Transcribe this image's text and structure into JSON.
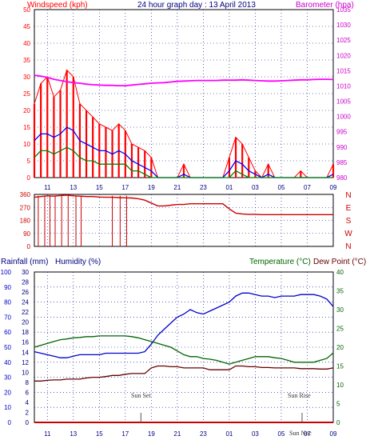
{
  "header": {
    "left_title": "Windspeed (kph)",
    "center_title": "24 hour graph day : 13 April 2013",
    "right_title": "Barometer (hpa)"
  },
  "axes": {
    "time_ticks": [
      "11",
      "13",
      "15",
      "17",
      "19",
      "21",
      "23",
      "01",
      "03",
      "05",
      "07",
      "09"
    ],
    "wind_ticks": [
      "0",
      "5",
      "10",
      "15",
      "20",
      "25",
      "30",
      "35",
      "40",
      "45",
      "50"
    ],
    "baro_ticks": [
      "980",
      "985",
      "990",
      "995",
      "1000",
      "1005",
      "1010",
      "1015",
      "1020",
      "1025",
      "1030",
      "1035"
    ],
    "dir_ticks": [
      "0",
      "90",
      "180",
      "270",
      "360"
    ],
    "dir_letters": [
      "N",
      "W",
      "S",
      "E",
      "N"
    ],
    "rain_ticks": [
      "0",
      "10",
      "20",
      "30",
      "40",
      "50",
      "60",
      "70",
      "80",
      "90",
      "100"
    ],
    "hum_ticks": [
      "0",
      "2",
      "4",
      "6",
      "8",
      "10",
      "12",
      "14",
      "16",
      "18",
      "20",
      "22",
      "24",
      "26",
      "28",
      "30"
    ],
    "temp_ticks": [
      "0",
      "5",
      "10",
      "15",
      "20",
      "25",
      "30",
      "35",
      "40"
    ]
  },
  "bottom_header": {
    "left_label": "Rainfall (mm)",
    "mid_label": "Humidity (%)",
    "right_label": "Temperature (°C)",
    "far_right_label": "Dew Point (°C)"
  },
  "annotations": {
    "sunset": "Sun Set",
    "sunrise": "Sun Rise",
    "sun_noc": "Sun Noc"
  },
  "colors": {
    "gust": "#ff0000",
    "avg_wind": "#0000ff",
    "lull": "#008000",
    "barometer": "#ff00ff",
    "direction": "#cc0000",
    "humidity": "#0000cc",
    "temperature": "#006600",
    "dewpoint": "#660000",
    "rain": "#cc0000",
    "grid": "#000080"
  },
  "chart_data": [
    {
      "type": "line",
      "name": "wind-and-barometer",
      "x_hours": [
        10,
        10.5,
        11,
        11.5,
        12,
        12.5,
        13,
        13.5,
        14,
        14.5,
        15,
        15.5,
        16,
        16.5,
        17,
        17.5,
        18,
        18.5,
        19,
        19.5,
        20,
        20.5,
        21,
        21.5,
        22,
        22.5,
        23,
        23.5,
        24,
        24.5,
        25,
        25.5,
        26,
        26.5,
        27,
        27.5,
        28,
        28.5,
        29,
        29.5,
        30,
        30.5,
        31,
        31.5,
        32,
        32.5,
        33
      ],
      "series": [
        {
          "key": "gust",
          "values": [
            22,
            28,
            30,
            24,
            26,
            32,
            30,
            22,
            20,
            18,
            16,
            15,
            14,
            16,
            14,
            10,
            9,
            8,
            6,
            0,
            0,
            0,
            0,
            4,
            0,
            0,
            0,
            0,
            0,
            0,
            6,
            12,
            10,
            6,
            2,
            0,
            4,
            0,
            0,
            0,
            0,
            2,
            0,
            0,
            0,
            0,
            4
          ]
        },
        {
          "key": "avg",
          "values": [
            11,
            13,
            13,
            12,
            13,
            15,
            14,
            11,
            10,
            9,
            8,
            8,
            7,
            8,
            7,
            5,
            4,
            3,
            2,
            0,
            0,
            0,
            0,
            1,
            0,
            0,
            0,
            0,
            0,
            0,
            2,
            5,
            4,
            2,
            1,
            0,
            1,
            0,
            0,
            0,
            0,
            0,
            0,
            0,
            0,
            0,
            1
          ]
        },
        {
          "key": "lull",
          "values": [
            6,
            8,
            8,
            7,
            8,
            9,
            8,
            6,
            5,
            5,
            4,
            4,
            4,
            4,
            4,
            2,
            2,
            1,
            0,
            0,
            0,
            0,
            0,
            0,
            0,
            0,
            0,
            0,
            0,
            0,
            0,
            2,
            1,
            0,
            0,
            0,
            0,
            0,
            0,
            0,
            0,
            0,
            0,
            0,
            0,
            0,
            0
          ]
        },
        {
          "key": "baro",
          "values": [
            1013.5,
            1013.2,
            1012.8,
            1012.2,
            1011.8,
            1011.4,
            1011.1,
            1010.9,
            1010.6,
            1010.4,
            1010.3,
            1010.2,
            1010.2,
            1010.1,
            1010.1,
            1010.3,
            1010.5,
            1010.7,
            1010.9,
            1011.0,
            1011.1,
            1011.3,
            1011.5,
            1011.6,
            1011.7,
            1011.8,
            1011.8,
            1011.8,
            1011.8,
            1011.9,
            1011.9,
            1011.9,
            1012.0,
            1011.9,
            1011.8,
            1011.7,
            1011.6,
            1011.6,
            1011.7,
            1011.8,
            1011.9,
            1012.0,
            1012.0,
            1012.1,
            1012.2,
            1012.2,
            1012.1
          ]
        }
      ],
      "wind_ylim": [
        0,
        50
      ],
      "baro_ylim": [
        980,
        1035
      ]
    },
    {
      "type": "line",
      "name": "wind-direction",
      "x_hours": [
        10,
        10.5,
        11,
        11.5,
        12,
        12.5,
        13,
        13.5,
        14,
        14.5,
        15,
        15.5,
        16,
        16.5,
        17,
        17.5,
        18,
        18.5,
        19,
        19.5,
        20,
        20.5,
        21,
        21.5,
        22,
        22.5,
        23,
        23.5,
        24,
        24.5,
        25,
        25.5,
        26,
        26.5,
        27,
        27.5,
        28,
        28.5,
        29,
        29.5,
        30,
        30.5,
        31,
        31.5,
        32,
        32.5,
        33
      ],
      "values": [
        340,
        345,
        350,
        348,
        352,
        355,
        350,
        348,
        345,
        345,
        342,
        340,
        340,
        338,
        336,
        335,
        330,
        320,
        300,
        280,
        280,
        285,
        290,
        290,
        295,
        295,
        295,
        295,
        295,
        295,
        260,
        230,
        225,
        222,
        222,
        220,
        220,
        220,
        220,
        220,
        220,
        220,
        220,
        220,
        220,
        220,
        220
      ],
      "ylim": [
        0,
        360
      ]
    },
    {
      "type": "line",
      "name": "temp-humidity-rain",
      "x_hours": [
        10,
        10.5,
        11,
        11.5,
        12,
        12.5,
        13,
        13.5,
        14,
        14.5,
        15,
        15.5,
        16,
        16.5,
        17,
        17.5,
        18,
        18.5,
        19,
        19.5,
        20,
        20.5,
        21,
        21.5,
        22,
        22.5,
        23,
        23.5,
        24,
        24.5,
        25,
        25.5,
        26,
        26.5,
        27,
        27.5,
        28,
        28.5,
        29,
        29.5,
        30,
        30.5,
        31,
        31.5,
        32,
        32.5,
        33
      ],
      "series": [
        {
          "key": "humidity",
          "values": [
            47,
            46,
            45,
            44,
            43,
            43,
            44,
            45,
            45,
            45,
            45,
            46,
            46,
            46,
            46,
            46,
            46,
            47,
            52,
            58,
            62,
            66,
            70,
            72,
            75,
            73,
            72,
            74,
            76,
            78,
            80,
            84,
            86,
            86,
            85,
            84,
            84,
            83,
            84,
            84,
            84,
            85,
            85,
            85,
            84,
            82,
            77
          ]
        },
        {
          "key": "temperature",
          "values": [
            20,
            20.5,
            21,
            21.5,
            22,
            22.2,
            22.5,
            22.6,
            22.8,
            22.8,
            23,
            23,
            23,
            23,
            23,
            22.8,
            22.5,
            22,
            21.5,
            21,
            20.5,
            20,
            19,
            18,
            17.5,
            17.5,
            17,
            16.8,
            16.5,
            16,
            15.5,
            16,
            16.5,
            17,
            17.5,
            17.5,
            17.5,
            17.2,
            17,
            16.5,
            16,
            16,
            16,
            16,
            16.5,
            17,
            18.5
          ]
        },
        {
          "key": "dewpoint",
          "values": [
            11,
            11,
            11.2,
            11.3,
            11.3,
            11.5,
            11.5,
            11.5,
            11.8,
            12,
            12,
            12.2,
            12.5,
            12.5,
            12.8,
            13,
            13,
            13,
            14.5,
            15,
            15,
            14.8,
            14.8,
            14.5,
            14.5,
            14.5,
            14.5,
            14,
            14,
            14,
            14,
            15,
            15,
            14.8,
            14.8,
            14.6,
            14.6,
            14.5,
            14.5,
            14.5,
            14.5,
            14.3,
            14.3,
            14.3,
            14.2,
            14.2,
            14.5
          ]
        },
        {
          "key": "rain",
          "values": [
            0,
            0,
            0,
            0,
            0,
            0,
            0,
            0,
            0,
            0,
            0,
            0,
            0,
            0,
            0,
            0,
            0,
            0,
            0,
            0,
            0,
            0,
            0,
            0,
            0,
            0,
            0,
            0,
            0,
            0,
            0,
            0,
            0,
            0,
            0,
            0,
            0,
            0,
            0,
            0,
            0,
            0,
            0,
            0,
            0,
            0,
            0
          ]
        }
      ],
      "rain_ylim": [
        0,
        100
      ],
      "hum_ylim": [
        0,
        30
      ],
      "temp_ylim": [
        0,
        40
      ]
    }
  ]
}
